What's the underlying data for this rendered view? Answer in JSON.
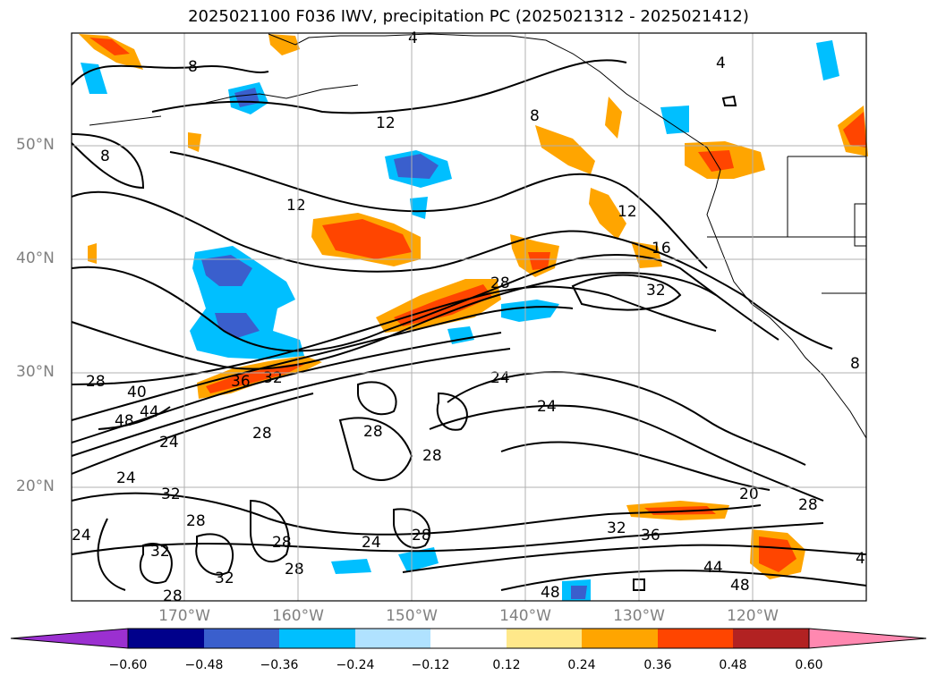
{
  "title": "2025021100 F036 IWV, precipitation PC (2025021312 - 2025021412)",
  "lat_labels": [
    "50°N",
    "40°N",
    "30°N",
    "20°N"
  ],
  "lon_labels": [
    "170°W",
    "160°W",
    "150°W",
    "140°W",
    "130°W",
    "120°W"
  ],
  "colorbar": {
    "ticks": [
      "−0.60",
      "−0.48",
      "−0.36",
      "−0.24",
      "−0.12",
      "0.12",
      "0.24",
      "0.36",
      "0.48",
      "0.60"
    ],
    "colors": [
      "#9b30d0",
      "#00008b",
      "#3a5fcd",
      "#00bfff",
      "#b0e2ff",
      "#ffffff",
      "#ffe88a",
      "#ffa500",
      "#ff4500",
      "#b22222",
      "#ff88b0"
    ]
  },
  "contour_labels": [
    "12",
    "8",
    "8",
    "12",
    "8",
    "12",
    "16",
    "32",
    "28",
    "24",
    "24",
    "28",
    "28",
    "28",
    "36",
    "32",
    "40",
    "48",
    "44",
    "24",
    "24",
    "32",
    "28",
    "28",
    "28",
    "24",
    "32",
    "32",
    "28",
    "28",
    "28",
    "20",
    "28",
    "32",
    "36",
    "44",
    "48",
    "48",
    "4",
    "4",
    "8",
    "4",
    "24"
  ]
}
